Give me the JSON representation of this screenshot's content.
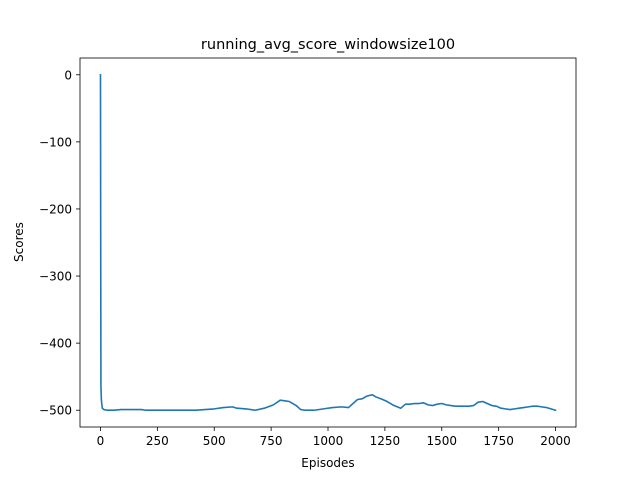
{
  "chart_data": {
    "type": "line",
    "title": "running_avg_score_windowsize100",
    "xlabel": "Episodes",
    "ylabel": "Scores",
    "xlim": [
      -90,
      2090
    ],
    "ylim": [
      -525,
      25
    ],
    "xticks": [
      0,
      250,
      500,
      750,
      1000,
      1250,
      1500,
      1750,
      2000
    ],
    "xtick_labels": [
      "0",
      "250",
      "500",
      "750",
      "1000",
      "1250",
      "1500",
      "1750",
      "2000"
    ],
    "yticks": [
      0,
      -100,
      -200,
      -300,
      -400,
      -500
    ],
    "ytick_labels": [
      "0",
      "−100",
      "−200",
      "−300",
      "−400",
      "−500"
    ],
    "grid": false,
    "legend": "none",
    "series": [
      {
        "color": "#1f77b4",
        "x": [
          0,
          1,
          2,
          4,
          8,
          15,
          30,
          60,
          90,
          120,
          150,
          180,
          200,
          240,
          300,
          360,
          420,
          460,
          500,
          540,
          580,
          600,
          640,
          680,
          720,
          760,
          790,
          810,
          830,
          860,
          880,
          900,
          940,
          980,
          1020,
          1060,
          1090,
          1110,
          1130,
          1150,
          1170,
          1195,
          1210,
          1240,
          1260,
          1290,
          1320,
          1340,
          1360,
          1380,
          1400,
          1420,
          1440,
          1460,
          1480,
          1500,
          1520,
          1540,
          1560,
          1580,
          1600,
          1620,
          1640,
          1660,
          1680,
          1700,
          1720,
          1740,
          1760,
          1780,
          1800,
          1820,
          1840,
          1860,
          1880,
          1900,
          1920,
          1940,
          1960,
          1980,
          2000
        ],
        "y": [
          0,
          -240,
          -465,
          -485,
          -497,
          -499,
          -500,
          -500,
          -499,
          -499,
          -499,
          -499,
          -500,
          -500,
          -500,
          -500,
          -500,
          -499,
          -498,
          -496,
          -495,
          -497,
          -498,
          -500,
          -497,
          -492,
          -485,
          -486,
          -487,
          -493,
          -499,
          -500,
          -500,
          -498,
          -496,
          -495,
          -496,
          -490,
          -484,
          -483,
          -479,
          -477,
          -480,
          -484,
          -487,
          -493,
          -497,
          -491,
          -491,
          -490,
          -490,
          -489,
          -492,
          -493,
          -491,
          -490,
          -492,
          -493,
          -494,
          -494,
          -494,
          -494,
          -493,
          -488,
          -487,
          -490,
          -493,
          -494,
          -497,
          -498,
          -499,
          -498,
          -497,
          -496,
          -495,
          -494,
          -494,
          -495,
          -496,
          -498,
          -500
        ]
      }
    ]
  }
}
